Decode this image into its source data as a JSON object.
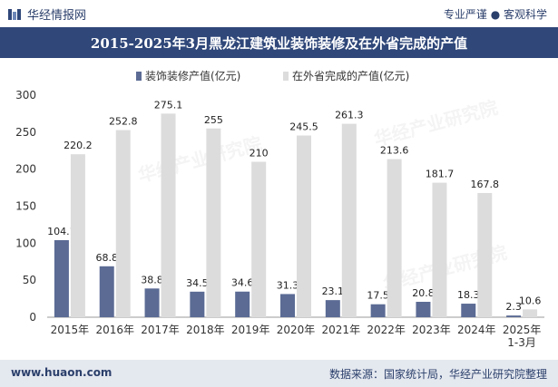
{
  "header": {
    "brand": "华经情报网",
    "slogan": "专业严谨 ● 客观科学"
  },
  "watermark": "华经产业研究院",
  "chart_data": {
    "type": "bar",
    "title": "2015-2025年3月黑龙江建筑业装饰装修及在外省完成的产值",
    "categories": [
      "2015年",
      "2016年",
      "2017年",
      "2018年",
      "2019年",
      "2020年",
      "2021年",
      "2022年",
      "2023年",
      "2024年",
      "2025年\n1-3月"
    ],
    "series": [
      {
        "name": "装饰装修产值(亿元)",
        "color": "#5b6b94",
        "values": [
          104.1,
          68.8,
          38.8,
          34.5,
          34.6,
          31.3,
          23.1,
          17.5,
          20.8,
          18.3,
          2.3
        ]
      },
      {
        "name": "在外省完成的产值(亿元)",
        "color": "#dcdcdc",
        "values": [
          220.2,
          252.8,
          275.1,
          255,
          210,
          245.5,
          261.3,
          213.6,
          181.7,
          167.8,
          10.6
        ]
      }
    ],
    "ylim": [
      0,
      300
    ],
    "yticks": [
      0,
      50,
      100,
      150,
      200,
      250,
      300
    ],
    "legend_position": "top-center",
    "grid": false
  },
  "footer": {
    "website": "www.huaon.com",
    "source": "数据来源：国家统计局，华经产业研究院整理"
  }
}
